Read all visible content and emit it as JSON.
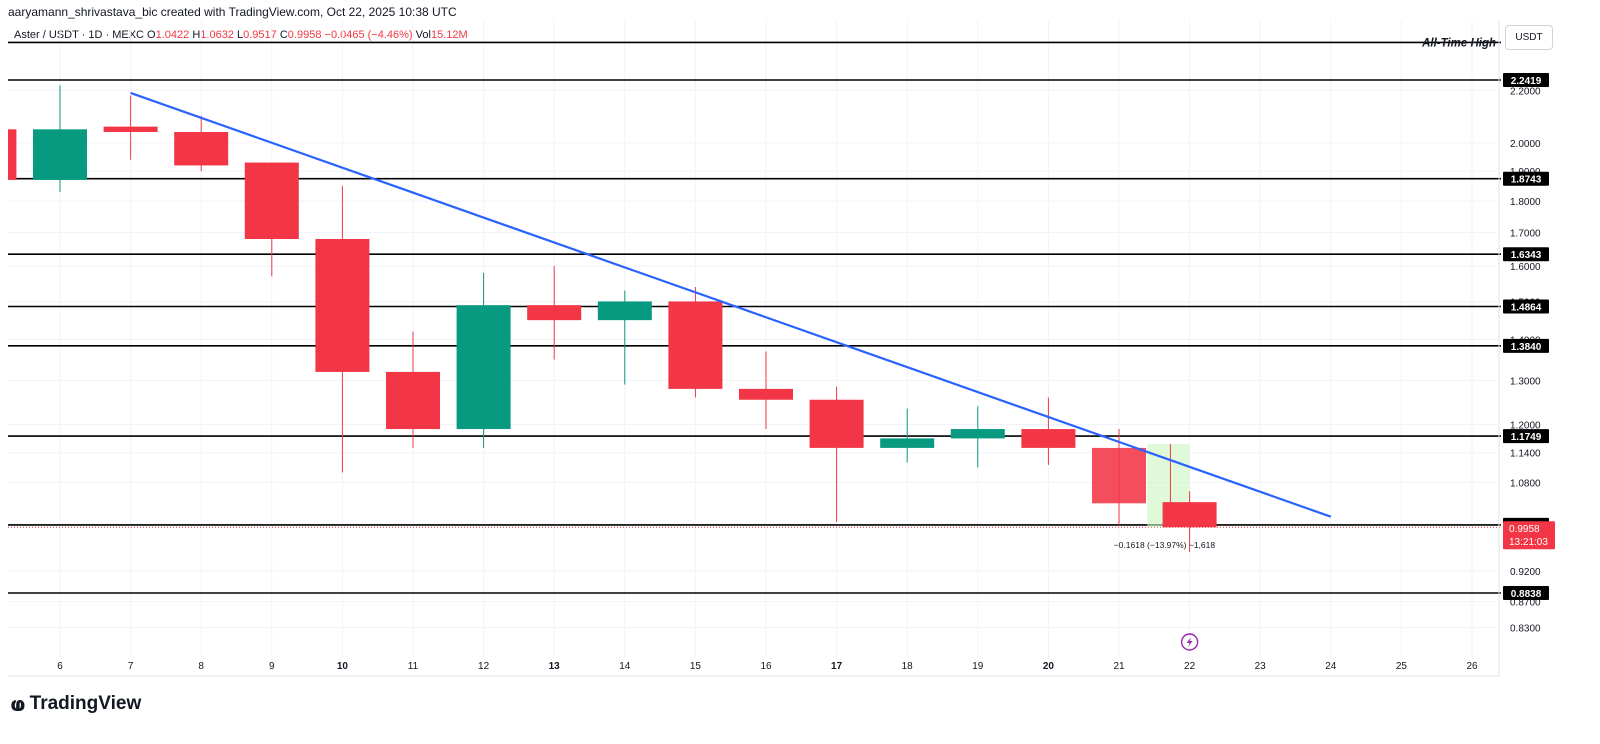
{
  "header": {
    "credit": "aaryamann_shrivastava_bic created with TradingView.com, Oct 22, 2025 10:38 UTC",
    "symbol": "Aster / USDT · 1D · MEXC",
    "ohlc": {
      "open_label": "O",
      "open": "1.0422",
      "high_label": "H",
      "high": "1.0632",
      "low_label": "L",
      "low": "0.9517",
      "close_label": "C",
      "close": "0.9958",
      "change": "−0.0465 (−4.46%)",
      "vol_label": "Vol",
      "vol": "15.12M"
    }
  },
  "currency_button": "USDT",
  "brand": {
    "name": "TradingView"
  },
  "colors": {
    "up": "#089981",
    "down": "#f23645",
    "trendline": "#2962ff",
    "level": "#000000",
    "grid": "#f0f3fa"
  },
  "chart_data": {
    "type": "candlestick",
    "y_scale": "log",
    "ylim": [
      0.8,
      2.32
    ],
    "x_ticks": [
      "6",
      "7",
      "8",
      "9",
      "10",
      "11",
      "12",
      "13",
      "14",
      "15",
      "16",
      "17",
      "18",
      "19",
      "20",
      "21",
      "22",
      "23",
      "24",
      "25",
      "26"
    ],
    "x_ticks_bold": [
      "10",
      "13",
      "17",
      "20"
    ],
    "y_ticks": [
      "0.8300",
      "0.8700",
      "0.9200",
      "1.0800",
      "1.1400",
      "1.2000",
      "1.3000",
      "1.4000",
      "1.5000",
      "1.6000",
      "1.7000",
      "1.8000",
      "1.9000",
      "2.0000",
      "2.2000"
    ],
    "candles": [
      {
        "date": "5",
        "open": 2.05,
        "high": 2.05,
        "low": 1.87,
        "close": 1.87
      },
      {
        "date": "6",
        "open": 1.87,
        "high": 2.22,
        "low": 1.83,
        "close": 2.05
      },
      {
        "date": "7",
        "open": 2.06,
        "high": 2.18,
        "low": 1.94,
        "close": 2.04
      },
      {
        "date": "8",
        "open": 2.04,
        "high": 2.1,
        "low": 1.9,
        "close": 1.92
      },
      {
        "date": "9",
        "open": 1.93,
        "high": 1.93,
        "low": 1.57,
        "close": 1.68
      },
      {
        "date": "10",
        "open": 1.68,
        "high": 1.85,
        "low": 1.1,
        "close": 1.32
      },
      {
        "date": "11",
        "open": 1.32,
        "high": 1.42,
        "low": 1.15,
        "close": 1.19
      },
      {
        "date": "12",
        "open": 1.19,
        "high": 1.58,
        "low": 1.15,
        "close": 1.49
      },
      {
        "date": "13",
        "open": 1.49,
        "high": 1.6,
        "low": 1.35,
        "close": 1.45
      },
      {
        "date": "14",
        "open": 1.45,
        "high": 1.53,
        "low": 1.29,
        "close": 1.5
      },
      {
        "date": "15",
        "open": 1.5,
        "high": 1.54,
        "low": 1.26,
        "close": 1.28
      },
      {
        "date": "16",
        "open": 1.28,
        "high": 1.37,
        "low": 1.19,
        "close": 1.255
      },
      {
        "date": "17",
        "open": 1.255,
        "high": 1.285,
        "low": 1.005,
        "close": 1.15
      },
      {
        "date": "18",
        "open": 1.15,
        "high": 1.235,
        "low": 1.12,
        "close": 1.17
      },
      {
        "date": "19",
        "open": 1.17,
        "high": 1.24,
        "low": 1.11,
        "close": 1.19
      },
      {
        "date": "20",
        "open": 1.19,
        "high": 1.26,
        "low": 1.115,
        "close": 1.15
      },
      {
        "date": "21",
        "open": 1.15,
        "high": 1.19,
        "low": 1.0,
        "close": 1.04
      },
      {
        "date": "22",
        "open": 1.0422,
        "high": 1.0632,
        "low": 0.9517,
        "close": 0.9958
      }
    ],
    "levels": [
      {
        "value": 2.4,
        "label": "All-Time High"
      },
      {
        "value": 2.2419,
        "label": "2.2419"
      },
      {
        "value": 1.8743,
        "label": "1.8743"
      },
      {
        "value": 1.6343,
        "label": "1.6343"
      },
      {
        "value": 1.4864,
        "label": "1.4864"
      },
      {
        "value": 1.384,
        "label": "1.3840"
      },
      {
        "value": 1.1749,
        "label": "1.1749"
      },
      {
        "value": 1.0,
        "label": "1.0000"
      },
      {
        "value": 0.8838,
        "label": "0.8838"
      }
    ],
    "trendline": {
      "from": {
        "date": "7",
        "price": 2.19
      },
      "to": {
        "date": "24",
        "price": 1.015
      }
    },
    "measure": {
      "from_date": "21.4",
      "to_date": "22",
      "top": 1.158,
      "bottom": 0.9958,
      "label": "−0.1618 (−13.97%) −1,618"
    },
    "last_price": {
      "value": 0.9958,
      "label": "0.9958",
      "countdown": "13:21:03"
    }
  }
}
